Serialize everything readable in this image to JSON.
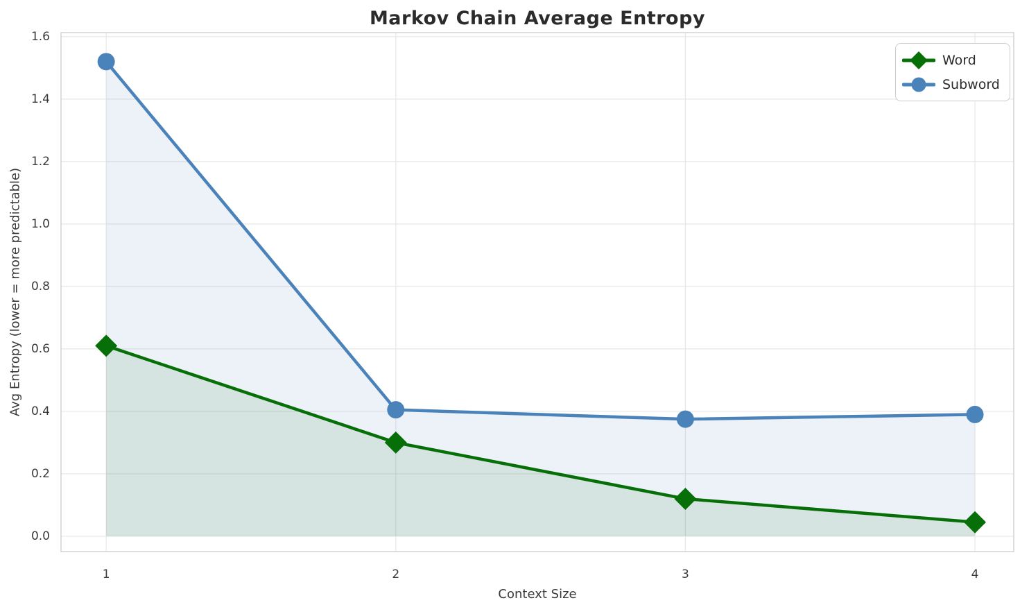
{
  "chart_data": {
    "type": "line",
    "title": "Markov Chain Average Entropy",
    "xlabel": "Context Size",
    "ylabel": "Avg Entropy (lower = more predictable)",
    "x": [
      1,
      2,
      3,
      4
    ],
    "series": [
      {
        "name": "Word",
        "values": [
          0.61,
          0.3,
          0.12,
          0.045
        ],
        "color": "#076f07",
        "marker": "diamond"
      },
      {
        "name": "Subword",
        "values": [
          1.52,
          0.405,
          0.375,
          0.39
        ],
        "color": "#4a83b9",
        "marker": "circle"
      }
    ],
    "xticks": [
      1,
      2,
      3,
      4
    ],
    "yticks": [
      0.0,
      0.2,
      0.4,
      0.6,
      0.8,
      1.0,
      1.2,
      1.4,
      1.6
    ],
    "xlim": [
      0.844,
      4.134
    ],
    "ylim": [
      -0.049,
      1.613
    ],
    "grid": true,
    "legend_position": "upper right",
    "fill_to_zero": true,
    "fill_alpha": 0.1,
    "line_width": 4.5,
    "grid_color": "#e7e7e7",
    "spine_color": "#cccccc",
    "tick_color": "#3a3a3a",
    "title_color": "#2b2b2b"
  }
}
